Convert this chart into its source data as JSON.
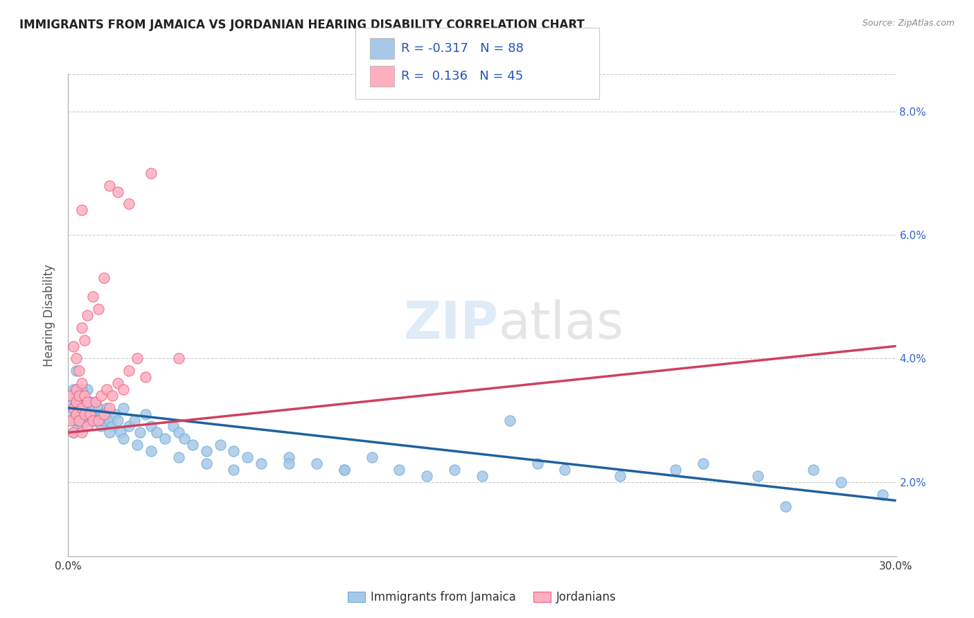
{
  "title": "IMMIGRANTS FROM JAMAICA VS JORDANIAN HEARING DISABILITY CORRELATION CHART",
  "source": "Source: ZipAtlas.com",
  "ylabel": "Hearing Disability",
  "xlabel_blue": "Immigrants from Jamaica",
  "xlabel_pink": "Jordanians",
  "xlim": [
    0.0,
    0.3
  ],
  "ylim": [
    0.008,
    0.086
  ],
  "yticks_right": [
    0.02,
    0.04,
    0.06,
    0.08
  ],
  "ytick_labels_right": [
    "2.0%",
    "4.0%",
    "6.0%",
    "8.0%"
  ],
  "xticks": [
    0.0,
    0.3
  ],
  "xtick_labels": [
    "0.0%",
    "30.0%"
  ],
  "blue_color": "#a8c8e8",
  "blue_edge_color": "#6baed6",
  "pink_color": "#ffb0c0",
  "pink_edge_color": "#f06080",
  "blue_line_color": "#2060a0",
  "pink_line_color": "#d04060",
  "title_color": "#222222",
  "source_color": "#888888",
  "watermark_color": "#c0d8f0",
  "grid_color": "#cccccc",
  "background_color": "#ffffff",
  "blue_trend_x": [
    0.0,
    0.3
  ],
  "blue_trend_y": [
    0.032,
    0.017
  ],
  "pink_trend_x": [
    0.0,
    0.3
  ],
  "pink_trend_y": [
    0.028,
    0.042
  ],
  "blue_scatter_x": [
    0.001,
    0.001,
    0.001,
    0.002,
    0.002,
    0.002,
    0.002,
    0.003,
    0.003,
    0.003,
    0.003,
    0.004,
    0.004,
    0.004,
    0.005,
    0.005,
    0.005,
    0.006,
    0.006,
    0.006,
    0.007,
    0.007,
    0.008,
    0.008,
    0.009,
    0.009,
    0.01,
    0.01,
    0.011,
    0.011,
    0.012,
    0.012,
    0.013,
    0.014,
    0.015,
    0.016,
    0.017,
    0.018,
    0.019,
    0.02,
    0.022,
    0.024,
    0.026,
    0.028,
    0.03,
    0.032,
    0.035,
    0.038,
    0.04,
    0.042,
    0.045,
    0.05,
    0.055,
    0.06,
    0.065,
    0.07,
    0.08,
    0.09,
    0.1,
    0.11,
    0.12,
    0.14,
    0.15,
    0.17,
    0.18,
    0.2,
    0.22,
    0.23,
    0.25,
    0.27,
    0.28,
    0.295,
    0.003,
    0.005,
    0.007,
    0.01,
    0.015,
    0.02,
    0.025,
    0.03,
    0.04,
    0.05,
    0.06,
    0.08,
    0.1,
    0.13,
    0.16,
    0.26
  ],
  "blue_scatter_y": [
    0.033,
    0.031,
    0.034,
    0.03,
    0.032,
    0.035,
    0.028,
    0.033,
    0.031,
    0.03,
    0.035,
    0.032,
    0.03,
    0.033,
    0.031,
    0.034,
    0.029,
    0.032,
    0.03,
    0.033,
    0.031,
    0.035,
    0.03,
    0.033,
    0.032,
    0.03,
    0.031,
    0.033,
    0.03,
    0.032,
    0.029,
    0.031,
    0.03,
    0.032,
    0.03,
    0.029,
    0.031,
    0.03,
    0.028,
    0.032,
    0.029,
    0.03,
    0.028,
    0.031,
    0.029,
    0.028,
    0.027,
    0.029,
    0.028,
    0.027,
    0.026,
    0.025,
    0.026,
    0.025,
    0.024,
    0.023,
    0.024,
    0.023,
    0.022,
    0.024,
    0.022,
    0.022,
    0.021,
    0.023,
    0.022,
    0.021,
    0.022,
    0.023,
    0.021,
    0.022,
    0.02,
    0.018,
    0.038,
    0.035,
    0.033,
    0.03,
    0.028,
    0.027,
    0.026,
    0.025,
    0.024,
    0.023,
    0.022,
    0.023,
    0.022,
    0.021,
    0.03,
    0.016
  ],
  "pink_scatter_x": [
    0.001,
    0.001,
    0.002,
    0.002,
    0.003,
    0.003,
    0.003,
    0.004,
    0.004,
    0.005,
    0.005,
    0.005,
    0.006,
    0.006,
    0.007,
    0.007,
    0.008,
    0.009,
    0.01,
    0.011,
    0.012,
    0.013,
    0.014,
    0.015,
    0.016,
    0.018,
    0.02,
    0.022,
    0.025,
    0.028,
    0.002,
    0.003,
    0.004,
    0.005,
    0.006,
    0.007,
    0.009,
    0.011,
    0.013,
    0.015,
    0.018,
    0.022,
    0.03,
    0.04,
    0.005
  ],
  "pink_scatter_y": [
    0.03,
    0.034,
    0.032,
    0.028,
    0.031,
    0.035,
    0.033,
    0.03,
    0.034,
    0.032,
    0.036,
    0.028,
    0.031,
    0.034,
    0.029,
    0.033,
    0.031,
    0.03,
    0.033,
    0.03,
    0.034,
    0.031,
    0.035,
    0.032,
    0.034,
    0.036,
    0.035,
    0.038,
    0.04,
    0.037,
    0.042,
    0.04,
    0.038,
    0.045,
    0.043,
    0.047,
    0.05,
    0.048,
    0.053,
    0.068,
    0.067,
    0.065,
    0.07,
    0.04,
    0.064
  ]
}
